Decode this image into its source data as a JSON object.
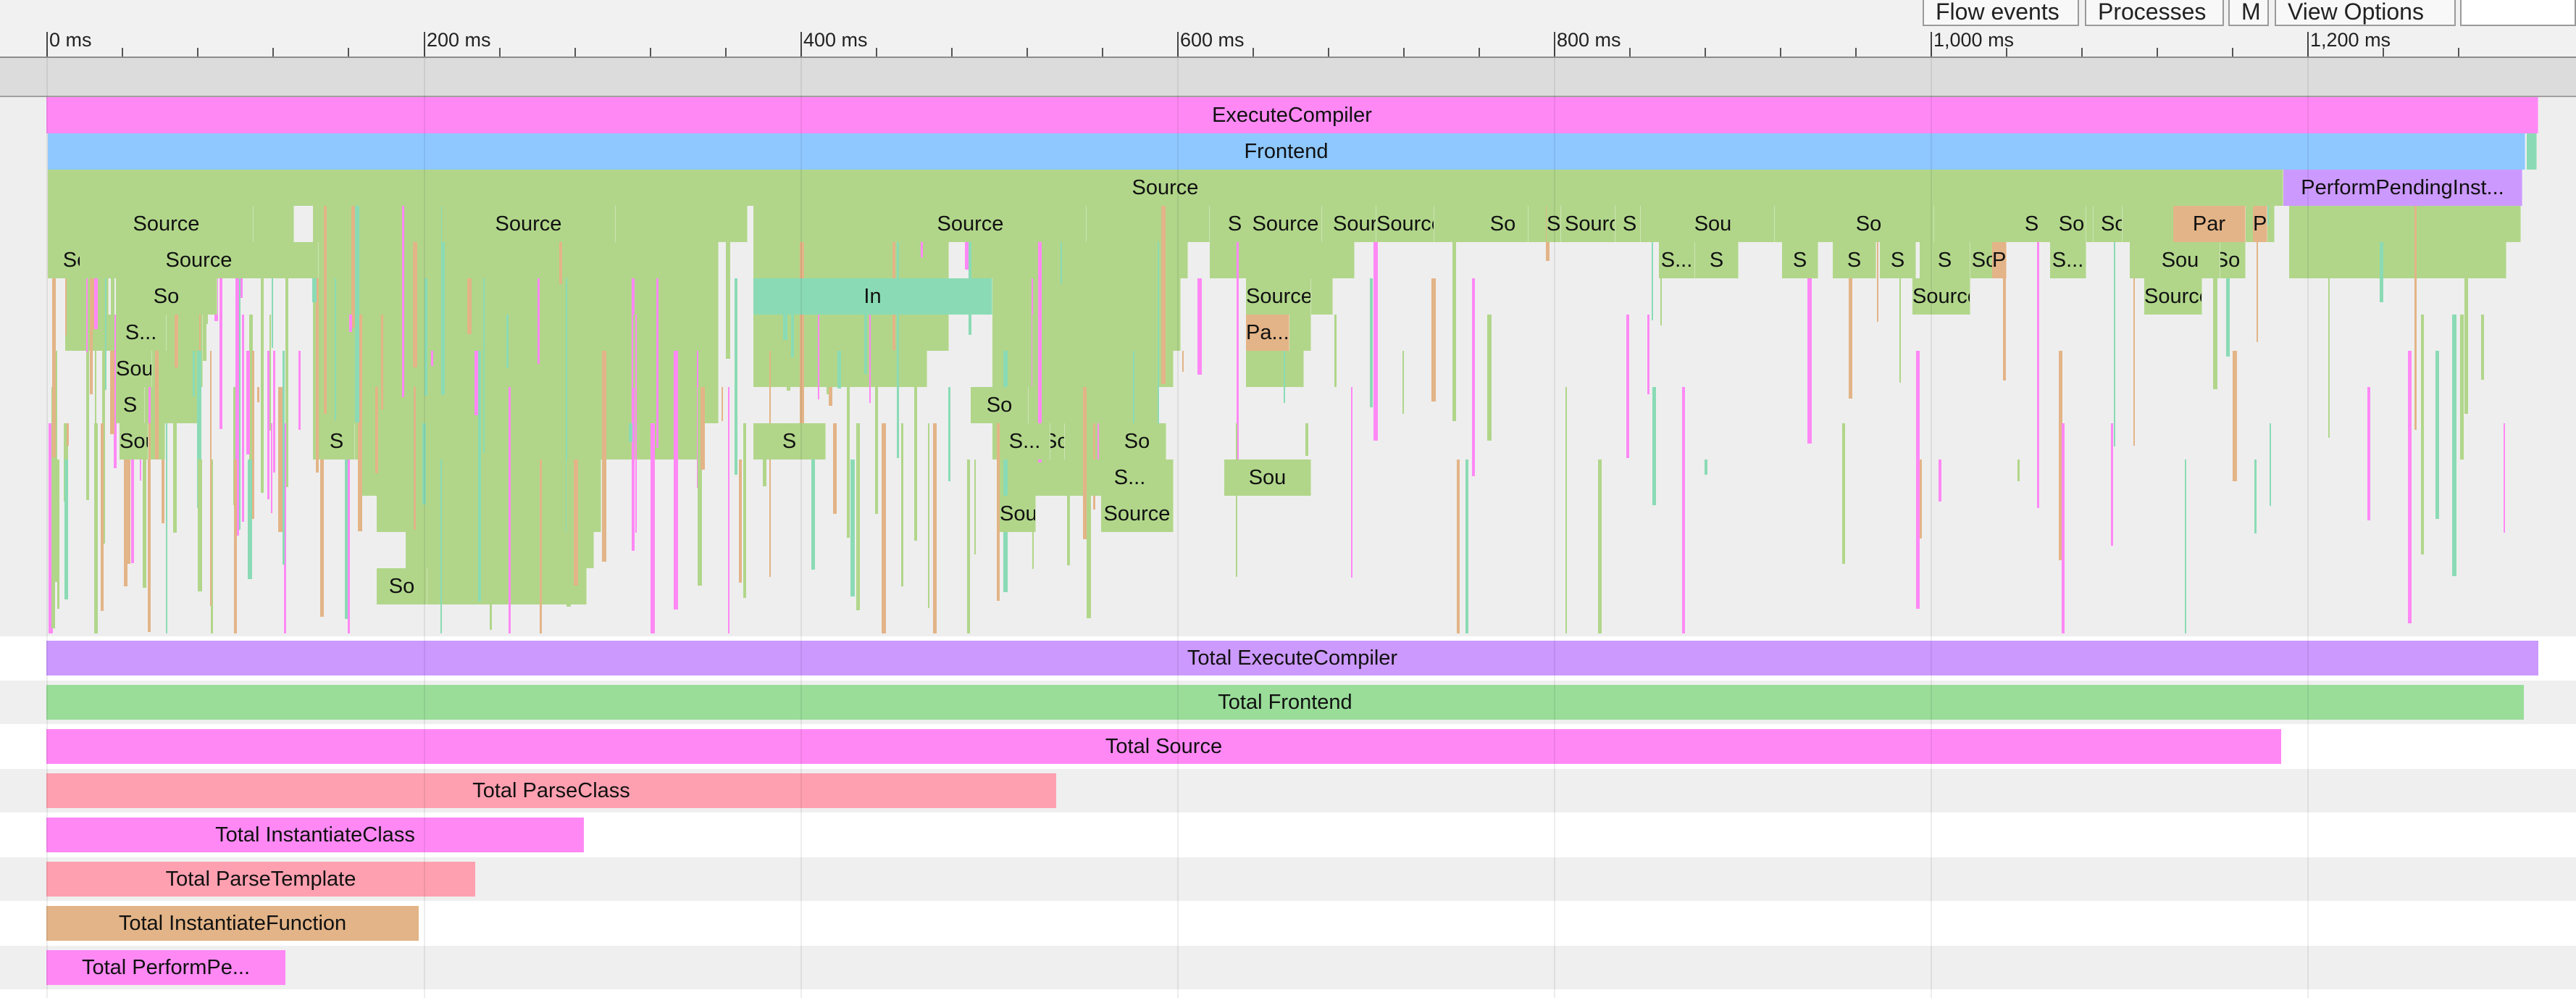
{
  "toolbar": {
    "buttons": [
      {
        "label": "Flow events"
      },
      {
        "label": "Processes"
      },
      {
        "label": "M"
      },
      {
        "label": "View Options"
      }
    ]
  },
  "timeline": {
    "tick_labels": [
      "0 ms",
      "200 ms",
      "400 ms",
      "600 ms",
      "800 ms",
      "1,000 ms",
      "1,200 ms"
    ]
  },
  "colors": {
    "execute": "#ff88f5",
    "frontend": "#8ec8ff",
    "source": "#b1d68a",
    "perform": "#cc99ff",
    "parse": "#e3b487",
    "teal": "#8adbb5",
    "pink": "#ff88f5",
    "total_execute": "#cc99ff",
    "total_frontend": "#99dd99",
    "total_source": "#ff88f5",
    "total_parseclass": "#ffa0b0",
    "total_instclass": "#ff88f5",
    "total_parsetemplate": "#ffa0b0",
    "total_instfunc": "#e3b487",
    "total_perform": "#ff88f5"
  },
  "flame": {
    "execute_label": "ExecuteCompiler",
    "frontend_label": "Frontend",
    "source_label": "Source",
    "perform_label": "PerformPendingInst...",
    "blocks": [
      {
        "label": "Source",
        "c": "source"
      },
      {
        "label": "Source",
        "c": "source"
      },
      {
        "label": "Source",
        "c": "source"
      },
      {
        "label": "So",
        "c": "source"
      },
      {
        "label": "Source",
        "c": "source"
      },
      {
        "label": "So",
        "c": "source"
      },
      {
        "label": "S...",
        "c": "source"
      },
      {
        "label": "Source",
        "c": "source"
      },
      {
        "label": "S",
        "c": "source"
      },
      {
        "label": "Sou",
        "c": "source"
      },
      {
        "label": "S",
        "c": "source"
      },
      {
        "label": "Source",
        "c": "source"
      },
      {
        "label": "Source",
        "c": "source"
      },
      {
        "label": "Source",
        "c": "source"
      },
      {
        "label": "So",
        "c": "source"
      },
      {
        "label": "So",
        "c": "source"
      },
      {
        "label": "Source",
        "c": "source"
      },
      {
        "label": "S",
        "c": "source"
      },
      {
        "label": "So",
        "c": "source"
      },
      {
        "label": "Source",
        "c": "source"
      },
      {
        "label": "Source",
        "c": "source"
      },
      {
        "label": "Source",
        "c": "source"
      },
      {
        "label": "Source",
        "c": "source"
      },
      {
        "label": "S...",
        "c": "source"
      },
      {
        "label": "S",
        "c": "source"
      },
      {
        "label": "S",
        "c": "source"
      },
      {
        "label": "S",
        "c": "source"
      },
      {
        "label": "S",
        "c": "source"
      },
      {
        "label": "S",
        "c": "source"
      },
      {
        "label": "So",
        "c": "source"
      },
      {
        "label": "Par",
        "c": "parse"
      },
      {
        "label": "S...",
        "c": "source"
      },
      {
        "label": "Sou",
        "c": "source"
      },
      {
        "label": "So",
        "c": "source"
      },
      {
        "label": "Sou",
        "c": "source"
      },
      {
        "label": "So",
        "c": "source"
      },
      {
        "label": "S",
        "c": "source"
      },
      {
        "label": "So",
        "c": "source"
      },
      {
        "label": "Source",
        "c": "source"
      },
      {
        "label": "Source",
        "c": "source"
      },
      {
        "label": "Source",
        "c": "source"
      },
      {
        "label": "Source",
        "c": "source"
      },
      {
        "label": "Sou",
        "c": "source"
      },
      {
        "label": "Par",
        "c": "parse"
      },
      {
        "label": "Par",
        "c": "parse"
      },
      {
        "label": "Sou",
        "c": "source"
      },
      {
        "label": "Source",
        "c": "source"
      },
      {
        "label": "Source",
        "c": "source"
      },
      {
        "label": "Source",
        "c": "source"
      },
      {
        "label": "S",
        "c": "source"
      },
      {
        "label": "So",
        "c": "source"
      },
      {
        "label": "Source",
        "c": "source"
      },
      {
        "label": "So",
        "c": "source"
      },
      {
        "label": "S...",
        "c": "source"
      },
      {
        "label": "S...",
        "c": "source"
      },
      {
        "label": "So",
        "c": "source"
      },
      {
        "label": "Pa...",
        "c": "parse"
      },
      {
        "label": "S",
        "c": "source"
      },
      {
        "label": "Sou",
        "c": "source"
      },
      {
        "label": "Source",
        "c": "source"
      },
      {
        "label": "S...",
        "c": "source"
      },
      {
        "label": "In",
        "c": "teal"
      },
      {
        "label": "In",
        "c": "teal"
      },
      {
        "label": "Source",
        "c": "source"
      },
      {
        "label": "So",
        "c": "source"
      },
      {
        "label": "So",
        "c": "source"
      },
      {
        "label": "Source",
        "c": "source"
      },
      {
        "label": "Source",
        "c": "source"
      }
    ]
  },
  "totals": [
    {
      "label": "Total ExecuteCompiler",
      "c": "total_execute"
    },
    {
      "label": "Total Frontend",
      "c": "total_frontend"
    },
    {
      "label": "Total Source",
      "c": "total_source"
    },
    {
      "label": "Total ParseClass",
      "c": "total_parseclass"
    },
    {
      "label": "Total InstantiateClass",
      "c": "total_instclass"
    },
    {
      "label": "Total ParseTemplate",
      "c": "total_parsetemplate"
    },
    {
      "label": "Total InstantiateFunction",
      "c": "total_instfunc"
    },
    {
      "label": "Total PerformPe...",
      "c": "total_perform"
    }
  ]
}
